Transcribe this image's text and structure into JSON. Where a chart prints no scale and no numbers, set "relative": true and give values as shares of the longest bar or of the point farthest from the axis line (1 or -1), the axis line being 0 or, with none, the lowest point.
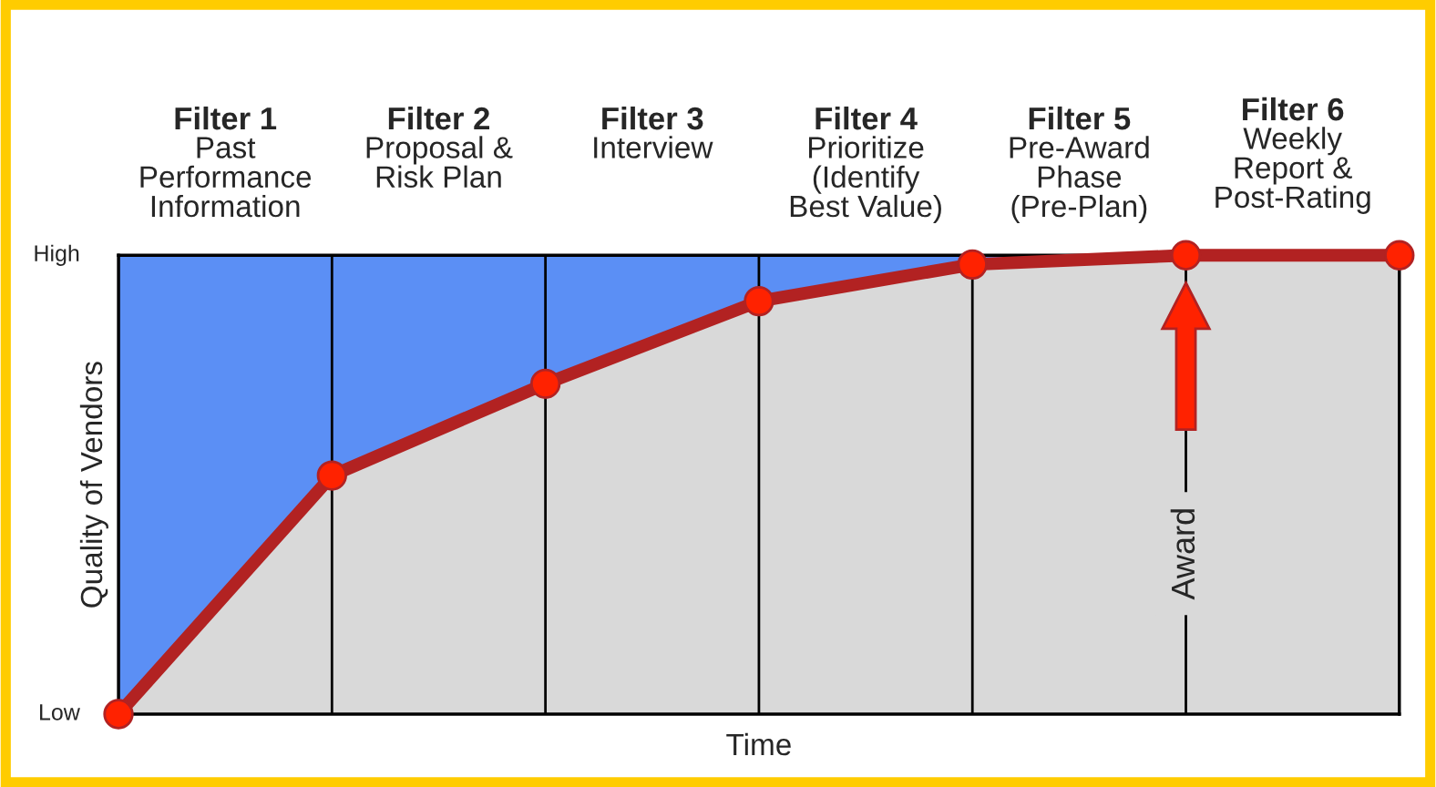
{
  "chart_data": {
    "type": "line",
    "xlabel": "Time",
    "ylabel": "Quality of Vendors",
    "categories": [
      null,
      null,
      null,
      null,
      null,
      null,
      null
    ],
    "relative": true,
    "grid": "x",
    "series": [
      {
        "color": "#b22222",
        "values": [
          0,
          0.52,
          0.72,
          0.9,
          0.98,
          1,
          1
        ]
      }
    ],
    "marker": "circle",
    "annotations": [
      "Filter 1\nPast\nPerformance\nInformation",
      "Filter 2\nProposal &\nRisk Plan",
      "Filter 3\nInterview",
      "Filter 4\nPrioritize\n(Identify\nBest Value)",
      "Filter 5\nPre-Award\nPhase\n(Pre-Plan)",
      "Filter 6\nWeekly\nReport &\nPost-Rating",
      "Low",
      "High",
      {
        "text": "Award"
      }
    ]
  }
}
